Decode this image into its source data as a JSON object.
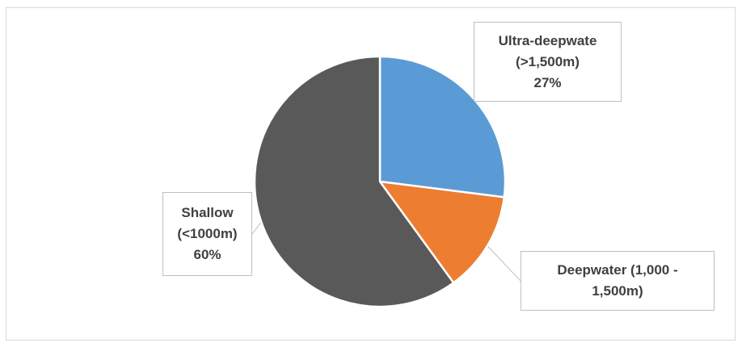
{
  "chart_data": {
    "type": "pie",
    "title": "",
    "slices": [
      {
        "label_lines": [
          "Ultra-deepwate",
          "(>1,500m)"
        ],
        "value": 27,
        "percent_label": "27%",
        "color": "#5b9bd5"
      },
      {
        "label_lines": [
          "Deepwater (1,000 -",
          "1,500m)"
        ],
        "value": 13,
        "percent_label": "",
        "color": "#ed7d31"
      },
      {
        "label_lines": [
          "Shallow",
          "(<1000m)"
        ],
        "value": 60,
        "percent_label": "60%",
        "color": "#595959"
      }
    ],
    "start_angle_deg": 0,
    "direction": "clockwise",
    "slice_border_color": "#ffffff",
    "label_color": "#404040",
    "legend": "none"
  }
}
